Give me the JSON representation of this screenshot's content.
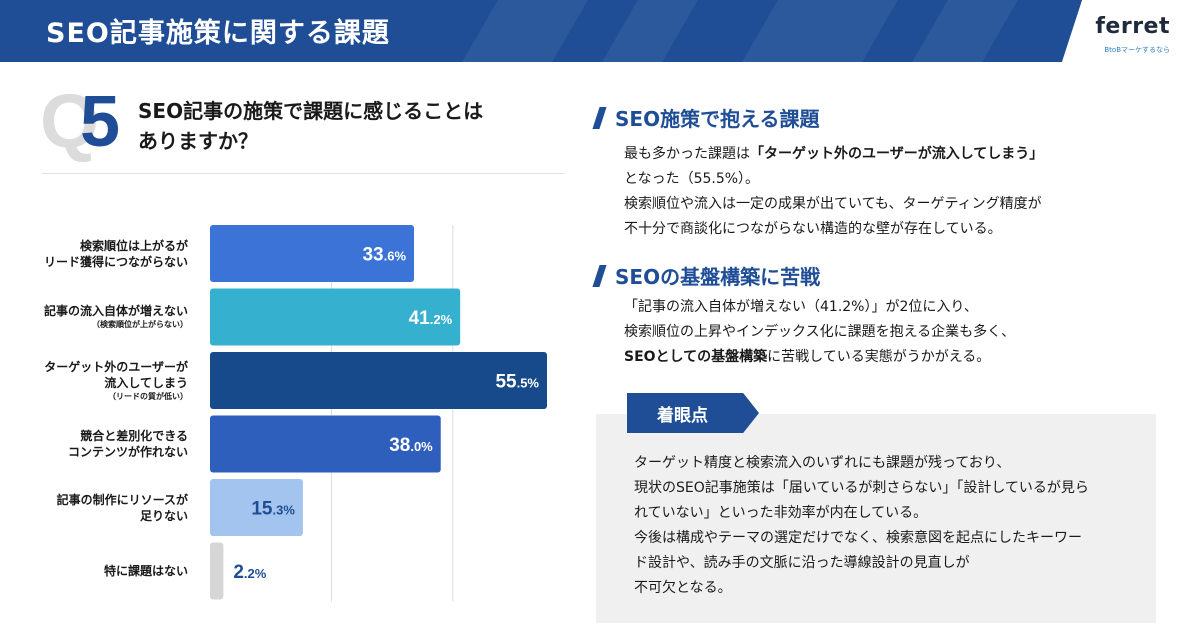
{
  "header": {
    "title": "SEO記事施策に関する課題"
  },
  "logo": {
    "name": "ferret",
    "tagline": "BtoBマーケするなら"
  },
  "question": {
    "q": "Q",
    "number": "5",
    "text_line1": "SEO記事の施策で課題に感じることは",
    "text_line2": "ありますか？"
  },
  "chart_data": {
    "type": "bar",
    "orientation": "horizontal",
    "categories": [
      {
        "line1": "検索順位は上がるが",
        "line2": "リード獲得につながらない",
        "note": ""
      },
      {
        "line1": "記事の流入自体が増えない",
        "line2": "",
        "note": "（検索順位が上がらない）"
      },
      {
        "line1": "ターゲット外のユーザーが",
        "line2": "流入してしまう",
        "note": "（リードの質が低い）"
      },
      {
        "line1": "競合と差別化できる",
        "line2": "コンテンツが作れない",
        "note": ""
      },
      {
        "line1": "記事の制作にリソースが",
        "line2": "足りない",
        "note": ""
      },
      {
        "line1": "特に課題はない",
        "line2": "",
        "note": ""
      }
    ],
    "values": [
      33.6,
      41.2,
      55.5,
      38.0,
      15.3,
      2.2
    ],
    "value_labels": [
      {
        "int": "33",
        "dec": ".6%"
      },
      {
        "int": "41",
        "dec": ".2%"
      },
      {
        "int": "55",
        "dec": ".5%"
      },
      {
        "int": "38",
        "dec": ".0%"
      },
      {
        "int": "15",
        "dec": ".3%"
      },
      {
        "int": "2",
        "dec": ".2%"
      }
    ],
    "colors": [
      "#3b74d6",
      "#35b0cf",
      "#174a8b",
      "#2f5fbd",
      "#a3c4ef",
      "#d6d6d6"
    ],
    "label_colors": [
      "#ffffff",
      "#ffffff",
      "#ffffff",
      "#ffffff",
      "#1f4e96",
      "#1f4e96"
    ],
    "xlim": [
      0,
      60
    ],
    "gridlines": [
      0,
      20,
      40,
      60
    ],
    "unit": "%"
  },
  "section1": {
    "title": "SEO施策で抱える課題",
    "p1_pre": "最も多かった課題は",
    "p1_bold": "「ターゲット外のユーザーが流入してしまう」",
    "p2": "となった（55.5%）。",
    "p3": "検索順位や流入は一定の成果が出ていても、ターゲティング精度が",
    "p4": "不十分で商談化につながらない構造的な壁が存在している。"
  },
  "section2": {
    "title": "SEOの基盤構築に苦戦",
    "p1": "「記事の流入自体が増えない（41.2%）」が2位に入り、",
    "p2": "検索順位の上昇やインデックス化に課題を抱える企業も多く、",
    "p3_bold": "SEOとしての基盤構築",
    "p3_post": "に苦戦している実態がうかがえる。"
  },
  "note": {
    "tag": "着眼点",
    "l1": "ターゲット精度と検索流入のいずれにも課題が残っており、",
    "l2": "現状のSEO記事施策は「届いているが刺さらない」「設計しているが見ら",
    "l3": "れていない」といった非効率が内在している。",
    "l4": "今後は構成やテーマの選定だけでなく、検索意図を起点にしたキーワー",
    "l5": "ド設計や、読み手の文脈に沿った導線設計の見直しが",
    "l6": "不可欠となる。"
  }
}
